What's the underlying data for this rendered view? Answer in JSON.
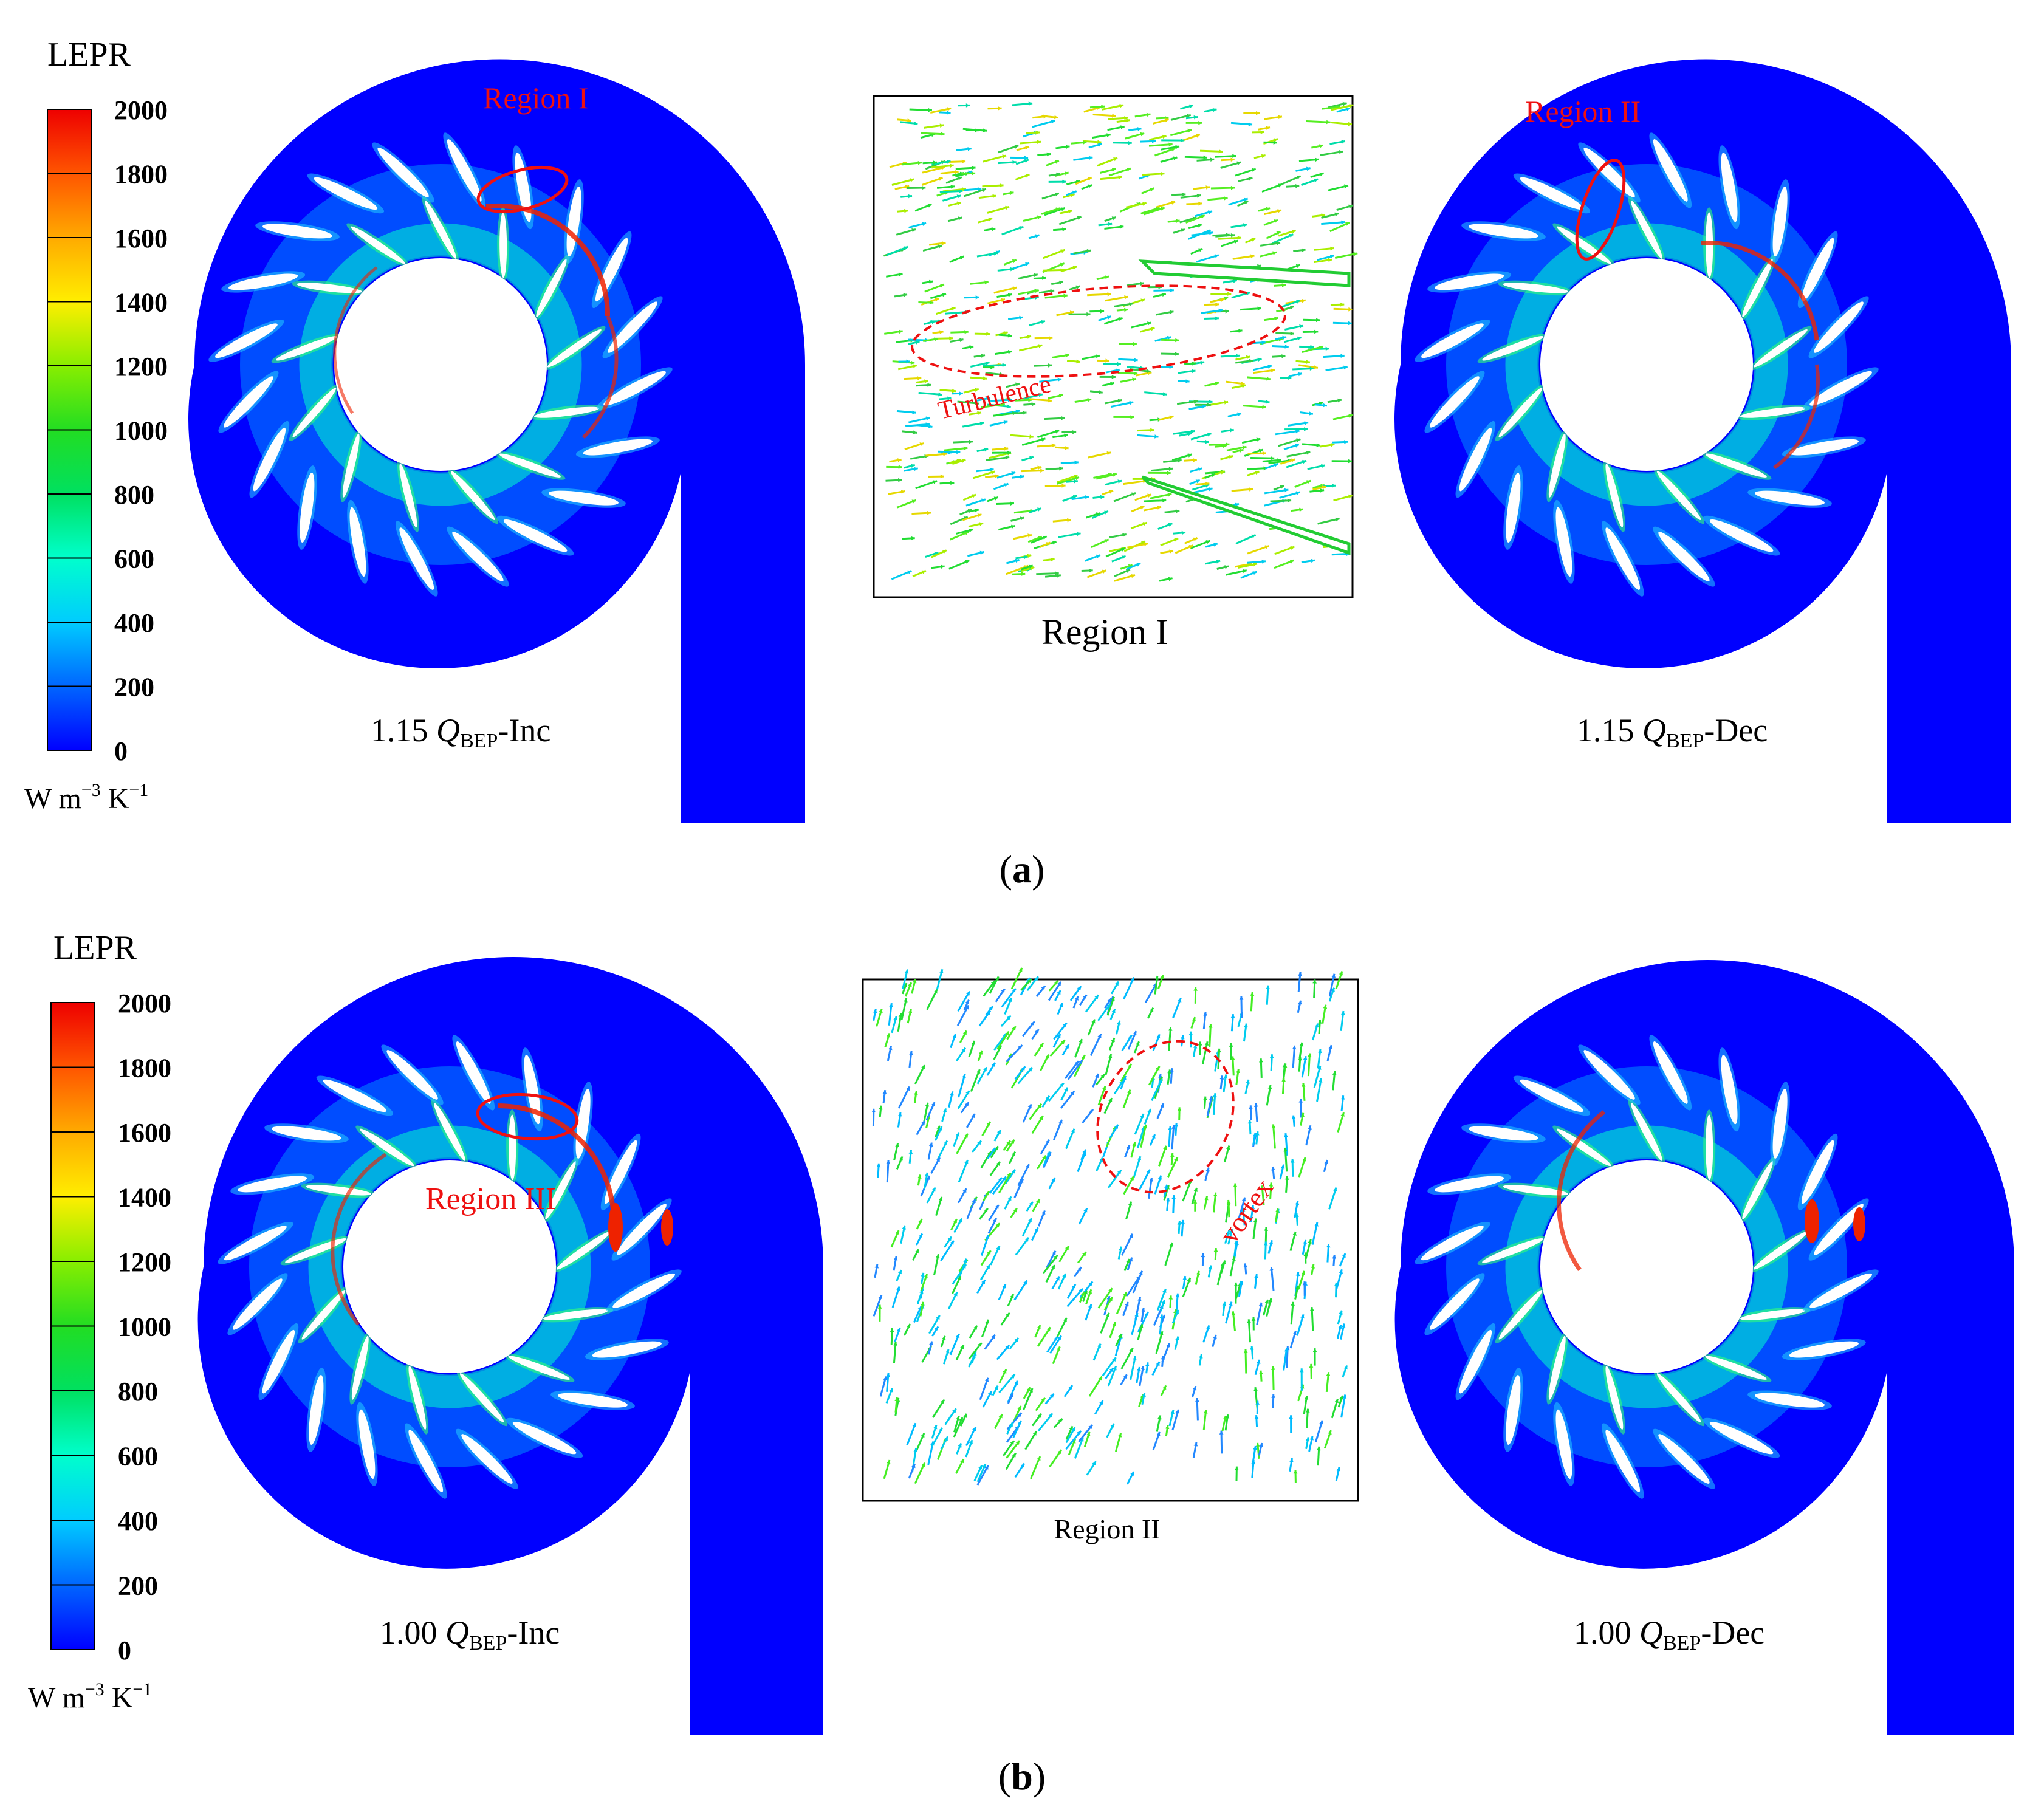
{
  "colors": {
    "contour_stops": [
      "#0000ff",
      "#0066ff",
      "#00ccff",
      "#00ffcc",
      "#00e060",
      "#22dd22",
      "#88ee00",
      "#ffee00",
      "#ffaa00",
      "#ff5500",
      "#ee0000"
    ],
    "flow_field": "#0000ff",
    "annotation": "#ee1111",
    "blade": "#ffffff"
  },
  "legend_labels": [
    "2000",
    "1800",
    "1600",
    "1400",
    "1200",
    "1000",
    "800",
    "600",
    "400",
    "200",
    "0"
  ],
  "panel_a": {
    "legend": {
      "title": "LEPR",
      "unit_w": "W m",
      "unit_exp1": "−3",
      "unit_k": " K",
      "unit_exp2": "−1"
    },
    "left": {
      "coeff": "1.15 ",
      "q": "Q",
      "sub": "BEP",
      "suffix": "-Inc",
      "region_label": "Region I"
    },
    "inset": {
      "caption": "Region I",
      "annotation": "Turbulence"
    },
    "right": {
      "coeff": "1.15 ",
      "q": "Q",
      "sub": "BEP",
      "suffix": "-Dec",
      "region_label": "Region II"
    },
    "panel_label": "a"
  },
  "panel_b": {
    "legend": {
      "title": "LEPR",
      "unit_w": "W m",
      "unit_exp1": "−3",
      "unit_k": " K",
      "unit_exp2": "−1"
    },
    "left": {
      "coeff": "1.00 ",
      "q": "Q",
      "sub": "BEP",
      "suffix": "-Inc",
      "region_label": "Region III"
    },
    "inset": {
      "caption": "Region II",
      "annotation": "vortex"
    },
    "right": {
      "coeff": "1.00 ",
      "q": "Q",
      "sub": "BEP",
      "suffix": "-Dec"
    },
    "panel_label": "b"
  }
}
